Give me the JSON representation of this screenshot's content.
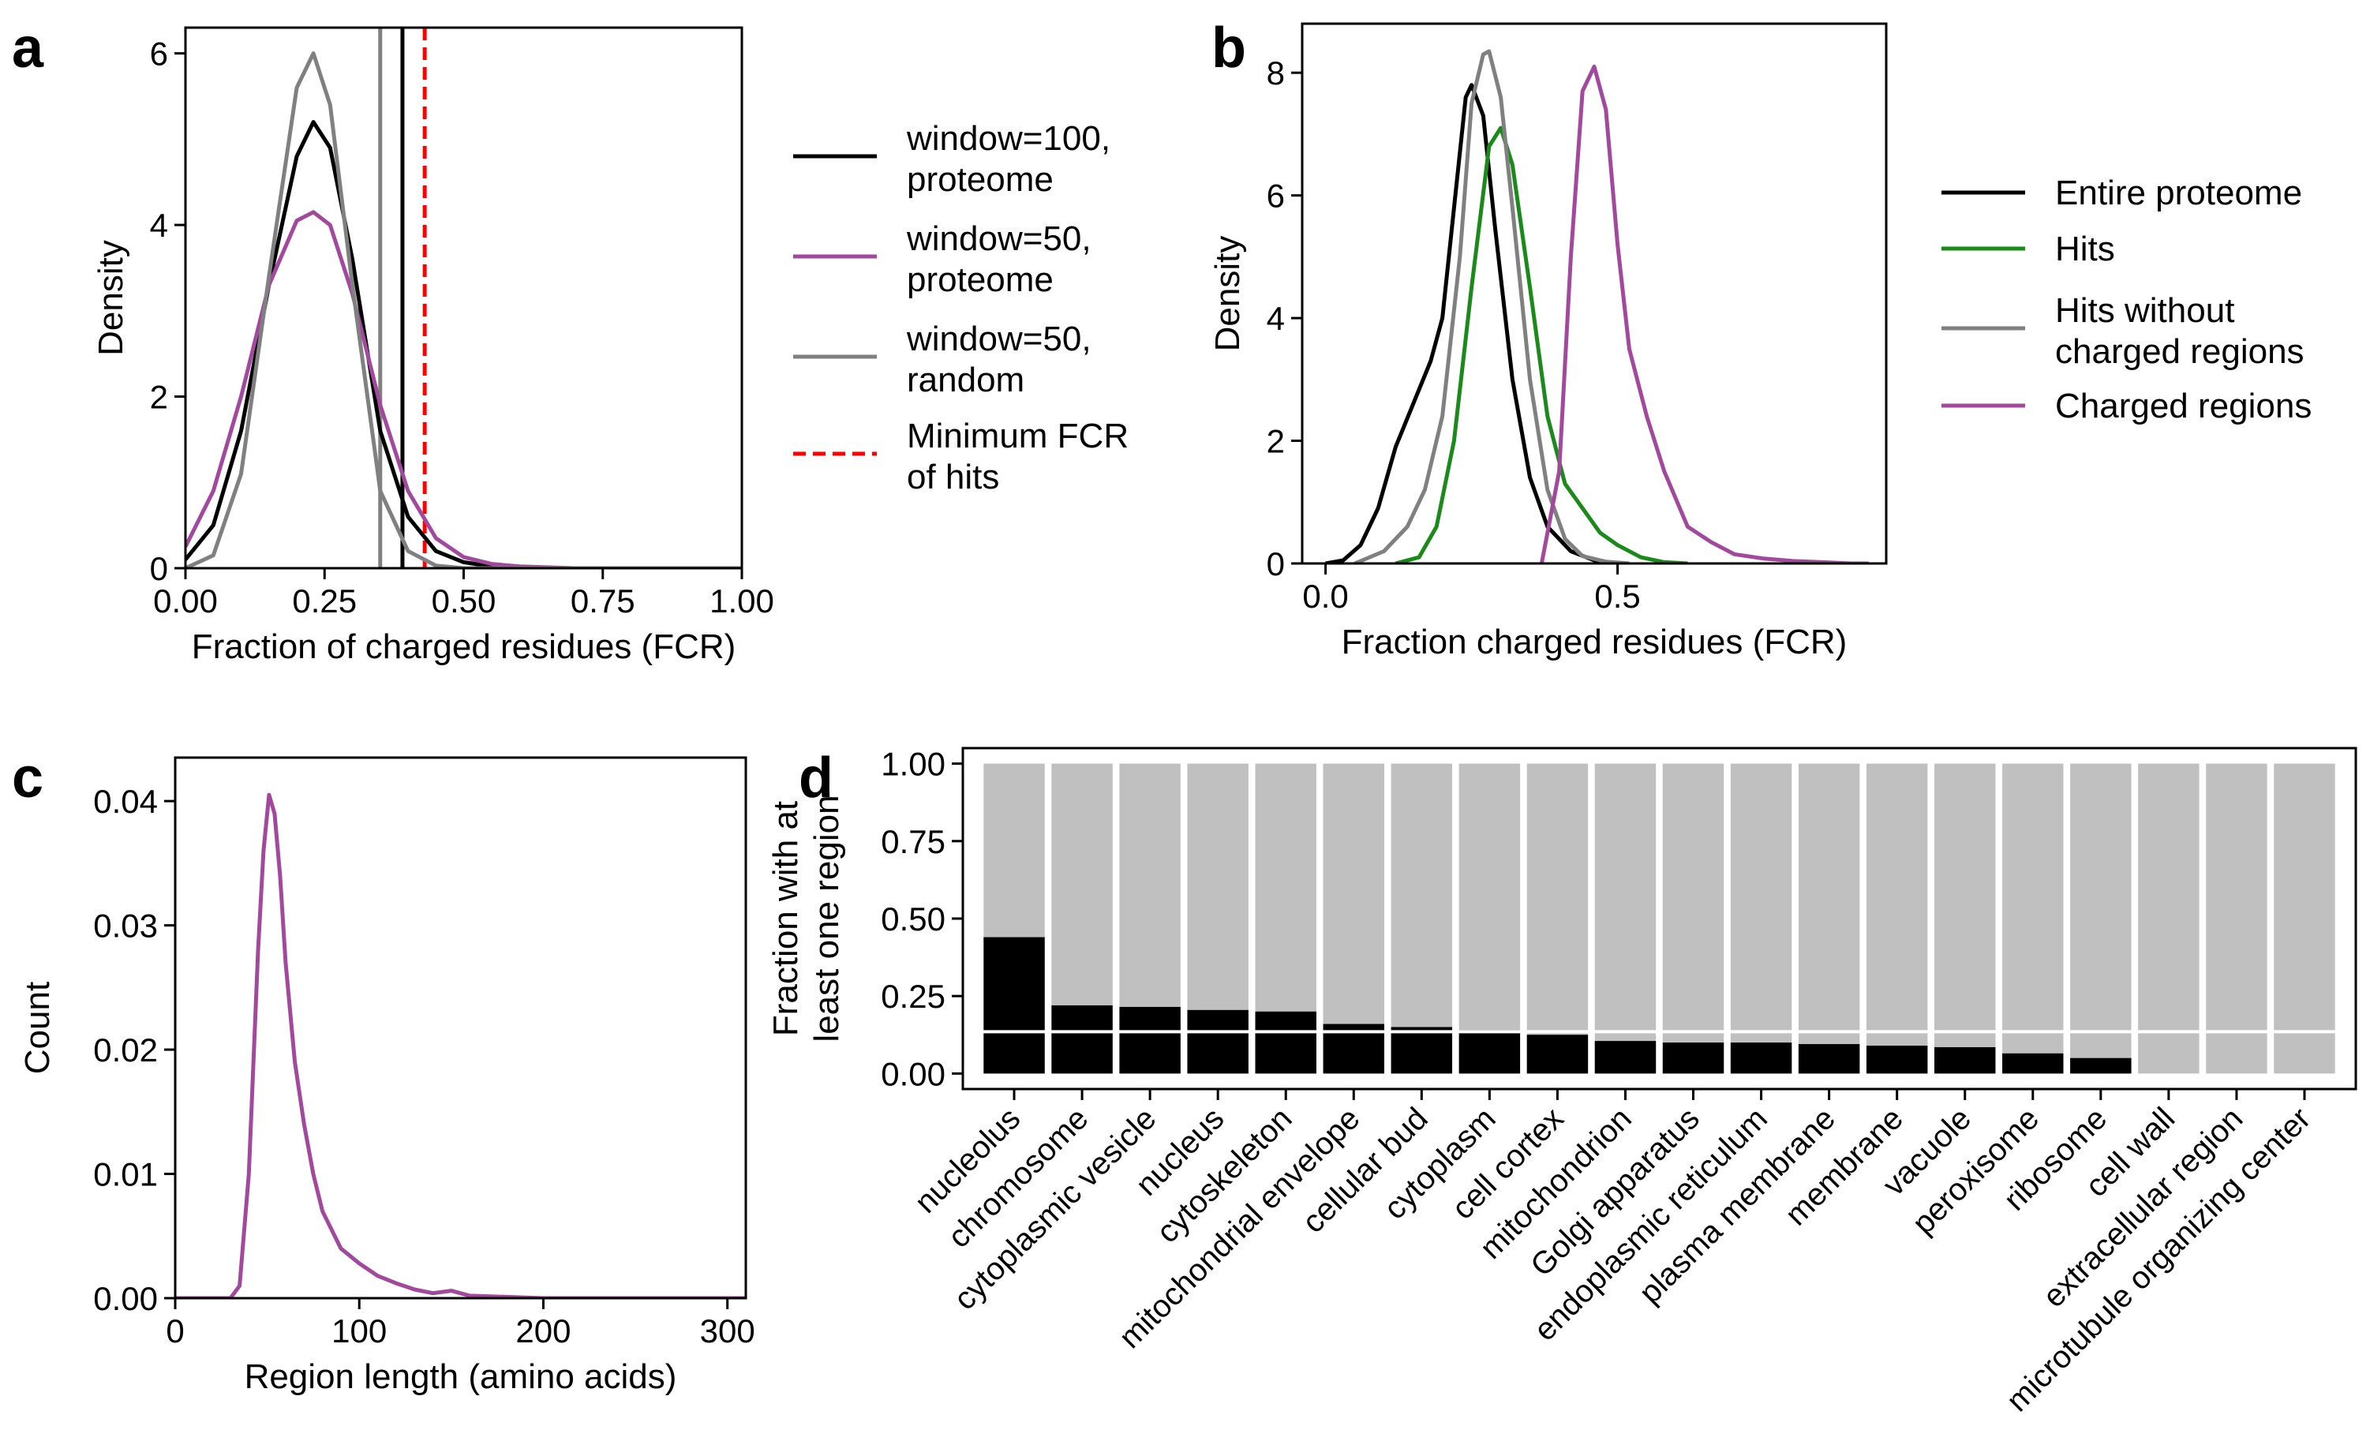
{
  "chart_data": [
    {
      "panel": "a",
      "type": "line",
      "xlabel": "Fraction of charged residues (FCR)",
      "ylabel": "Density",
      "xlim": [
        0,
        1
      ],
      "ylim": [
        0,
        6.3
      ],
      "xticks": [
        "0.00",
        "0.25",
        "0.50",
        "0.75",
        "1.00"
      ],
      "yticks": [
        "0",
        "2",
        "4",
        "6"
      ],
      "grid": false,
      "legend_position": "right",
      "series": [
        {
          "name": "window=100,\nproteome",
          "color": "#000000",
          "dash": "solid",
          "x": [
            0,
            0.05,
            0.1,
            0.15,
            0.2,
            0.23,
            0.26,
            0.3,
            0.35,
            0.4,
            0.45,
            0.5,
            0.55,
            0.6,
            1.0
          ],
          "y": [
            0.1,
            0.5,
            1.6,
            3.3,
            4.8,
            5.2,
            4.9,
            3.6,
            1.6,
            0.6,
            0.2,
            0.07,
            0.02,
            0.0,
            0.0
          ]
        },
        {
          "name": "window=50,\nproteome",
          "color": "#a2489d",
          "dash": "solid",
          "x": [
            0,
            0.05,
            0.1,
            0.15,
            0.2,
            0.23,
            0.26,
            0.3,
            0.35,
            0.4,
            0.45,
            0.5,
            0.55,
            0.6,
            0.7,
            1.0
          ],
          "y": [
            0.25,
            0.9,
            2.0,
            3.3,
            4.05,
            4.15,
            4.0,
            3.2,
            1.9,
            0.9,
            0.35,
            0.13,
            0.05,
            0.02,
            0.0,
            0.0
          ]
        },
        {
          "name": "window=50,\nrandom",
          "color": "#808080",
          "dash": "solid",
          "x": [
            0,
            0.05,
            0.1,
            0.15,
            0.2,
            0.23,
            0.26,
            0.3,
            0.35,
            0.4,
            0.45,
            0.5,
            1.0
          ],
          "y": [
            0.0,
            0.15,
            1.1,
            3.4,
            5.6,
            6.0,
            5.4,
            3.3,
            0.9,
            0.2,
            0.03,
            0.0,
            0.0
          ]
        }
      ],
      "vlines": [
        {
          "x": 0.35,
          "color": "#808080",
          "dash": "solid"
        },
        {
          "x": 0.39,
          "color": "#000000",
          "dash": "solid"
        },
        {
          "x": 0.43,
          "color": "#ff0000",
          "dash": "dashed",
          "name": "Minimum FCR\nof hits"
        }
      ]
    },
    {
      "panel": "b",
      "type": "line",
      "xlabel": "Fraction charged residues (FCR)",
      "ylabel": "Density",
      "xlim": [
        -0.04,
        0.96
      ],
      "ylim": [
        0,
        8.8
      ],
      "xticks": [
        "0.0",
        "0.5"
      ],
      "yticks": [
        "0",
        "2",
        "4",
        "6",
        "8"
      ],
      "grid": false,
      "legend_position": "right",
      "series": [
        {
          "name": "Entire proteome",
          "color": "#000000",
          "dash": "solid",
          "x": [
            0.0,
            0.03,
            0.06,
            0.09,
            0.12,
            0.15,
            0.18,
            0.2,
            0.22,
            0.24,
            0.25,
            0.27,
            0.29,
            0.32,
            0.35,
            0.38,
            0.42,
            0.46,
            0.5
          ],
          "y": [
            0.0,
            0.05,
            0.3,
            0.9,
            1.9,
            2.6,
            3.3,
            4.0,
            5.8,
            7.6,
            7.8,
            7.3,
            5.5,
            3.0,
            1.4,
            0.6,
            0.2,
            0.05,
            0.0
          ]
        },
        {
          "name": "Hits",
          "color": "#1a8a1a",
          "dash": "solid",
          "x": [
            0.12,
            0.16,
            0.19,
            0.22,
            0.25,
            0.28,
            0.3,
            0.32,
            0.35,
            0.38,
            0.41,
            0.44,
            0.47,
            0.5,
            0.54,
            0.58,
            0.62
          ],
          "y": [
            0.0,
            0.1,
            0.6,
            2.0,
            4.5,
            6.8,
            7.1,
            6.5,
            4.5,
            2.4,
            1.3,
            0.9,
            0.5,
            0.3,
            0.1,
            0.02,
            0.0
          ]
        },
        {
          "name": "Hits without\ncharged regions",
          "color": "#808080",
          "dash": "solid",
          "x": [
            0.05,
            0.1,
            0.14,
            0.17,
            0.2,
            0.23,
            0.25,
            0.27,
            0.28,
            0.3,
            0.32,
            0.35,
            0.38,
            0.41,
            0.44,
            0.48,
            0.52
          ],
          "y": [
            0.0,
            0.2,
            0.6,
            1.2,
            2.4,
            5.0,
            7.5,
            8.3,
            8.35,
            7.6,
            5.8,
            3.0,
            1.2,
            0.4,
            0.12,
            0.03,
            0.0
          ]
        },
        {
          "name": "Charged regions",
          "color": "#a2489d",
          "dash": "solid",
          "x": [
            0.37,
            0.4,
            0.42,
            0.44,
            0.46,
            0.48,
            0.5,
            0.52,
            0.55,
            0.58,
            0.62,
            0.66,
            0.7,
            0.75,
            0.8,
            0.85,
            0.9,
            0.93
          ],
          "y": [
            0.0,
            1.5,
            5.0,
            7.7,
            8.1,
            7.4,
            5.2,
            3.5,
            2.4,
            1.5,
            0.6,
            0.35,
            0.15,
            0.08,
            0.04,
            0.02,
            0.0,
            0.0
          ]
        }
      ]
    },
    {
      "panel": "c",
      "type": "line",
      "xlabel": "Region length (amino acids)",
      "ylabel": "Count",
      "xlim": [
        0,
        310
      ],
      "ylim": [
        0,
        0.0435
      ],
      "xticks": [
        "0",
        "100",
        "200",
        "300"
      ],
      "yticks": [
        "0.00",
        "0.01",
        "0.02",
        "0.03",
        "0.04"
      ],
      "grid": false,
      "series": [
        {
          "name": "",
          "color": "#a2489d",
          "dash": "solid",
          "x": [
            0,
            30,
            35,
            40,
            45,
            48,
            51,
            54,
            57,
            60,
            65,
            70,
            75,
            80,
            90,
            100,
            110,
            120,
            130,
            140,
            150,
            160,
            180,
            200,
            250,
            310
          ],
          "y": [
            0,
            0,
            0.001,
            0.01,
            0.028,
            0.036,
            0.0405,
            0.039,
            0.034,
            0.027,
            0.019,
            0.014,
            0.01,
            0.007,
            0.004,
            0.0028,
            0.0018,
            0.0012,
            0.0007,
            0.0004,
            0.0006,
            0.0002,
            0.0001,
            0.0,
            0.0,
            0.0
          ]
        }
      ]
    },
    {
      "panel": "d",
      "type": "bar",
      "ylabel": "Fraction with at\nleast one region",
      "ylim": [
        -0.05,
        1.05
      ],
      "yticks": [
        "0.00",
        "0.25",
        "0.50",
        "0.75",
        "1.00"
      ],
      "reference_line": 0.135,
      "grid": false,
      "categories": [
        "nucleolus",
        "chromosome",
        "cytoplasmic vesicle",
        "nucleus",
        "cytoskeleton",
        "mitochondrial envelope",
        "cellular bud",
        "cytoplasm",
        "cell cortex",
        "mitochondrion",
        "Golgi apparatus",
        "endoplasmic reticulum",
        "plasma membrane",
        "membrane",
        "vacuole",
        "peroxisome",
        "ribosome",
        "cell wall",
        "extracellular region",
        "microtubule organizing center"
      ],
      "values": [
        0.44,
        0.22,
        0.215,
        0.205,
        0.2,
        0.16,
        0.15,
        0.14,
        0.125,
        0.105,
        0.1,
        0.1,
        0.095,
        0.09,
        0.085,
        0.065,
        0.05,
        0.0,
        0.0,
        0.0
      ],
      "background_value": 1.0,
      "colors": {
        "bar": "#000000",
        "background": "#c0c0c0",
        "line": "#ffffff"
      }
    }
  ]
}
